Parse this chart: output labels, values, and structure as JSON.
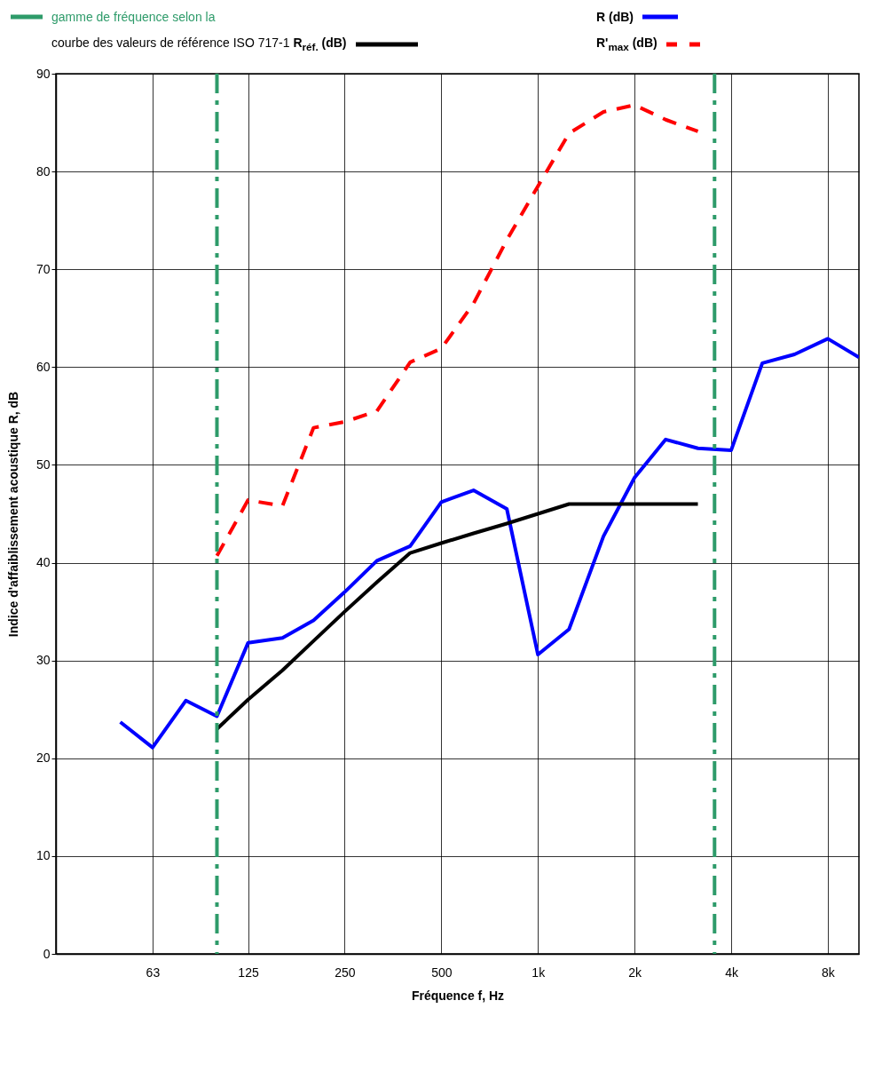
{
  "chart_data": {
    "type": "line",
    "xlabel": "Fréquence f, Hz",
    "ylabel": "Indice d'affaiblissement acoustique R, dB",
    "log": "x",
    "xlim": [
      31.5,
      10000
    ],
    "ylim": [
      0,
      90
    ],
    "xticks": [
      63,
      125,
      250,
      500,
      {
        "value": 1000,
        "label": "1k"
      },
      {
        "value": 2000,
        "label": "2k"
      },
      {
        "value": 4000,
        "label": "4k"
      },
      {
        "value": 8000,
        "label": "8k"
      }
    ],
    "yticks": [
      0,
      10,
      20,
      30,
      40,
      50,
      60,
      70,
      80,
      90
    ],
    "grid": true,
    "legend": "top",
    "marker": "none",
    "series": [
      {
        "name": "R (dB)",
        "color": "#0000ff",
        "line_style": "solid",
        "x": [
          50,
          63,
          80,
          100,
          125,
          160,
          200,
          250,
          315,
          400,
          500,
          630,
          800,
          1000,
          1250,
          1600,
          2000,
          2500,
          3150,
          4000,
          5000,
          6300,
          8000,
          10000
        ],
        "values": [
          23.7,
          21.1,
          25.9,
          24.3,
          31.8,
          32.3,
          34.1,
          37.0,
          40.2,
          41.7,
          46.2,
          47.4,
          45.5,
          30.6,
          33.2,
          42.7,
          48.7,
          52.6,
          51.7,
          51.5,
          60.4,
          61.3,
          62.9,
          61.0
        ]
      },
      {
        "name": "R'$_{max}$ (dB)",
        "color": "#ff0000",
        "line_style": "dashed",
        "x": [
          100,
          125,
          160,
          200,
          250,
          315,
          400,
          500,
          630,
          800,
          1000,
          1250,
          1600,
          2000,
          2500,
          3150
        ],
        "values": [
          40.7,
          46.4,
          45.8,
          53.8,
          54.4,
          55.5,
          60.5,
          61.9,
          66.5,
          73.0,
          78.5,
          83.9,
          86.1,
          86.8,
          85.3,
          84.1
        ]
      },
      {
        "name": "courbe des valeurs de référence ISO 717-1 R$_{réf.}$ (dB)",
        "color": "#000000",
        "line_style": "solid",
        "x": [
          100,
          125,
          160,
          200,
          250,
          315,
          400,
          500,
          630,
          800,
          1000,
          1250,
          1600,
          2000,
          2500,
          3150
        ],
        "values": [
          23,
          26,
          29,
          32,
          35,
          38,
          41,
          42,
          43,
          44,
          45,
          46,
          46,
          46,
          46,
          46
        ]
      }
    ],
    "ref_lines": [
      {
        "axis": "x",
        "value": 100,
        "label": "gamme de fréquence selon la",
        "color": "#2e9b6a",
        "line_style": "dashed"
      },
      {
        "axis": "x",
        "value": 3550,
        "color": "#2e9b6a",
        "line_style": "dashed"
      }
    ]
  }
}
